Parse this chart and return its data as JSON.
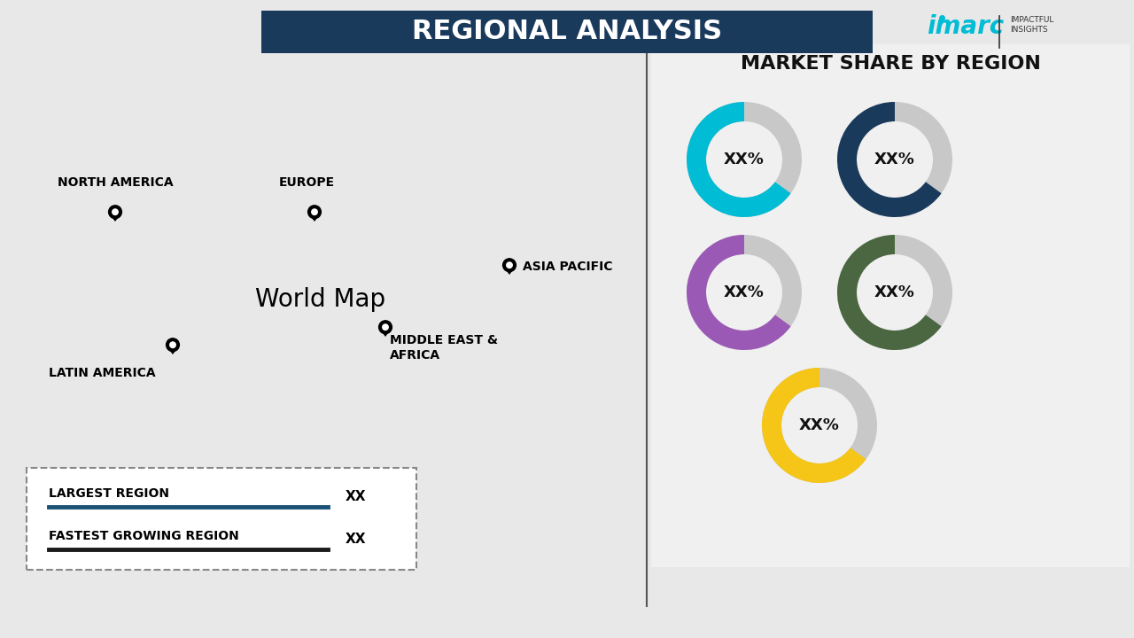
{
  "title": "REGIONAL ANALYSIS",
  "bg_color": "#e8e8e8",
  "title_bg_color": "#1a3a5c",
  "title_text_color": "#ffffff",
  "right_panel_title": "MARKET SHARE BY REGION",
  "donut_colors": [
    "#00bcd4",
    "#1a3a5c",
    "#9b59b6",
    "#4a6741",
    "#f5c518"
  ],
  "donut_gray": "#c8c8c8",
  "donut_percent": 0.65,
  "regions": [
    "North America",
    "Europe",
    "Asia Pacific",
    "Middle East & Africa",
    "Latin America"
  ],
  "region_colors": {
    "north_america": "#00bcd4",
    "europe": "#1a3a5c",
    "asia_pacific": "#9b59b6",
    "middle_east_africa": "#e6ac00",
    "latin_america": "#4a6741"
  },
  "legend_largest": "XX",
  "legend_fastest": "XX",
  "legend_largest_color": "#1a5276",
  "legend_fastest_color": "#1a1a1a",
  "divider_color": "#555555",
  "imarc_cyan": "#00bcd4"
}
